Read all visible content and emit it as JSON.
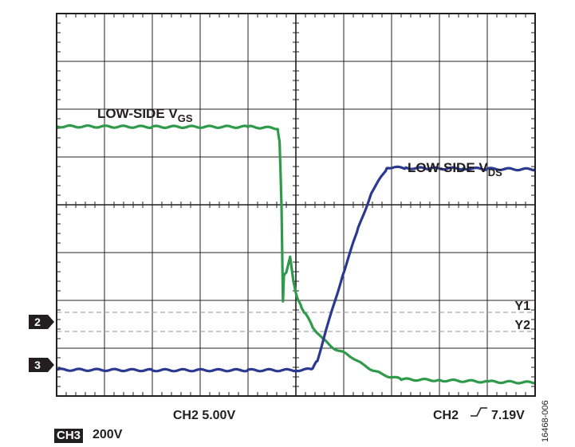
{
  "chart_data": {
    "type": "line",
    "title": "",
    "xlabel": "",
    "ylabel": "",
    "divisions": {
      "x": 10,
      "y": 8
    },
    "xlim": [
      0,
      10
    ],
    "ylim": [
      0,
      8
    ],
    "grid": true,
    "series": [
      {
        "name": "LOW-SIDE VGS",
        "label_main": "LOW-SIDE V",
        "label_sub": "GS",
        "color": "#2e9a4a",
        "x": [
          0.0,
          2.0,
          4.0,
          4.0,
          4.62,
          4.66,
          4.7,
          4.72,
          4.73,
          4.75,
          4.8,
          4.88,
          4.95,
          5.0,
          5.05,
          5.12,
          5.2,
          5.35,
          5.55,
          5.8,
          6.0,
          6.2,
          6.4,
          6.6,
          6.8,
          7.2,
          8.0,
          9.0,
          10.0
        ],
        "y": [
          5.64,
          5.63,
          5.63,
          5.63,
          5.6,
          5.3,
          4.0,
          2.6,
          2.0,
          2.5,
          2.6,
          2.9,
          2.4,
          2.15,
          2.0,
          1.85,
          1.72,
          1.45,
          1.2,
          1.0,
          0.9,
          0.8,
          0.65,
          0.55,
          0.45,
          0.35,
          0.33,
          0.3,
          0.28
        ]
      },
      {
        "name": "LOW-SIDE VDS",
        "label_main": "LOW-SIDE V",
        "label_sub": "DS",
        "color": "#2b3990",
        "x": [
          0.0,
          2.0,
          4.0,
          5.0,
          5.35,
          5.45,
          5.7,
          6.0,
          6.3,
          6.6,
          6.9,
          7.0,
          7.3,
          7.8,
          8.5,
          9.0,
          10.0
        ],
        "y": [
          0.55,
          0.54,
          0.54,
          0.54,
          0.56,
          0.75,
          1.6,
          2.6,
          3.5,
          4.3,
          4.75,
          4.78,
          4.77,
          4.76,
          4.76,
          4.75,
          4.74
        ]
      }
    ],
    "cursors": [
      {
        "name": "Y1",
        "y": 1.75
      },
      {
        "name": "Y2",
        "y": 1.35
      }
    ],
    "channel_markers": [
      {
        "label": "2",
        "y": 1.55
      },
      {
        "label": "3",
        "y": 0.65
      }
    ],
    "scale_labels": {
      "ch2_scale": "CH2 5.00V",
      "trigger_prefix": "CH2",
      "trigger_value": "7.19V"
    }
  },
  "footer": {
    "ch3_badge": "CH3",
    "ch3_scale": "200V",
    "figure_id": "16468-006"
  }
}
